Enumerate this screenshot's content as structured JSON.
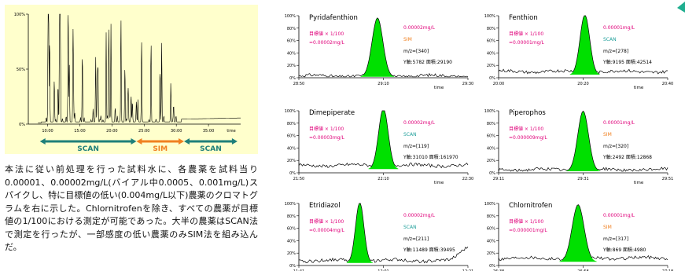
{
  "overview": {
    "y_ticks": [
      "100%",
      "50%",
      "0%"
    ],
    "x_ticks": [
      "10:00",
      "15:00",
      "20:00",
      "25:00",
      "30:00",
      "35:00"
    ],
    "time_label": "time",
    "modes": [
      {
        "label": "SCAN",
        "color": "#1f7f7a",
        "from": 8.8,
        "to": 23.8
      },
      {
        "label": "SIM",
        "color": "#f08020",
        "from": 23.8,
        "to": 31.2
      },
      {
        "label": "SCAN",
        "color": "#1f7f7a",
        "from": 31.2,
        "to": 39.5
      }
    ],
    "xlim": [
      7,
      40
    ]
  },
  "description": "本法に従い前処理を行った試料水に、各農薬を試料当り0.00001、0.00002mg/L(バイアル中0.0005、0.001mg/L)スパイクし、特に目標値の低い(0.004mg/L以下)農薬のクロマトグラムを右に示した。Chlornitrofenを除き、すべての農薬が目標値の1/100における測定が可能であった。大半の農薬はSCAN法で測定を行ったが、一部感度の低い農薬のみSIM法を組み込んだ。",
  "colors": {
    "peak_fill": "#00e000",
    "concentration": "#e0007a",
    "scan": "#1f9f9a",
    "sim": "#f08020",
    "panel_bg": "#ffffcc"
  },
  "chart_data": [
    {
      "type": "line",
      "title": "Pyridafenthion",
      "concentration": "0.00002mg/L",
      "target_label": "目標値 × 1/100",
      "target_value": "=0.00002mg/L",
      "mode": "SIM",
      "mz": "m/z=[340]",
      "stats": "Y軸:5782 面積:29190",
      "y_ticks": [
        "100%",
        "80%",
        "60%",
        "40%",
        "20%",
        "0%"
      ],
      "x_ticks": [
        "28:50",
        "29:10",
        "29:30"
      ],
      "xlabel": "time",
      "peak": {
        "position": 0.465,
        "width": 0.045,
        "height": 0.95
      },
      "baseline": 0.03
    },
    {
      "type": "line",
      "title": "Fenthion",
      "concentration": "0.00001mg/L",
      "target_label": "目標値 × 1/100",
      "target_value": "=0.00001mg/L",
      "mode": "SCAN",
      "mz": "m/z=[278]",
      "stats": "Y軸:9195 面積:42514",
      "y_ticks": [
        "100%",
        "80%",
        "60%",
        "40%",
        "20%",
        "0%"
      ],
      "x_ticks": [
        "20:00",
        "20:20",
        "20:40"
      ],
      "xlabel": "time",
      "peak": {
        "position": 0.51,
        "width": 0.04,
        "height": 0.97
      },
      "baseline": 0.1
    },
    {
      "type": "line",
      "title": "Dimepiperate",
      "concentration": "0.00002mg/L",
      "target_label": "目標値 × 1/100",
      "target_value": "=0.00003mg/L",
      "mode": "SCAN",
      "mz": "m/z=[119]",
      "stats": "Y軸:31010 面積:161970",
      "y_ticks": [
        "100%",
        "80%",
        "60%",
        "40%",
        "20%",
        "0%"
      ],
      "x_ticks": [
        "21:50",
        "22:10",
        "22:30"
      ],
      "xlabel": "time",
      "peak": {
        "position": 0.5,
        "width": 0.04,
        "height": 0.98
      },
      "baseline": 0.12
    },
    {
      "type": "line",
      "title": "Piperophos",
      "concentration": "0.00001mg/L",
      "target_label": "目標値 × 1/100",
      "target_value": "=0.000009mg/L",
      "mode": "SIM",
      "mz": "m/z=[320]",
      "stats": "Y軸:2492 面積:12868",
      "y_ticks": [
        "100%",
        "80%",
        "60%",
        "40%",
        "20%",
        "0%"
      ],
      "x_ticks": [
        "29:11",
        "29:31",
        "29:51"
      ],
      "xlabel": "time",
      "peak": {
        "position": 0.5,
        "width": 0.045,
        "height": 0.97
      },
      "baseline": 0.05
    },
    {
      "type": "line",
      "title": "Etridiazol",
      "concentration": "0.00002mg/L",
      "target_label": "目標値 × 1/100",
      "target_value": "=0.00004mg/L",
      "mode": "SCAN",
      "mz": "m/z=[211]",
      "stats": "Y軸:11489 面積:39495",
      "y_ticks": [
        "100%",
        "80%",
        "60%",
        "40%",
        "20%",
        "0%"
      ],
      "x_ticks": [
        "11:41",
        "12:01",
        "12:21"
      ],
      "xlabel": "time",
      "peak": {
        "position": 0.36,
        "width": 0.035,
        "height": 0.98
      },
      "baseline": 0.08
    },
    {
      "type": "line",
      "title": "Chlornitrofen",
      "concentration": "0.00001mg/L",
      "target_label": "目標値 × 1/100",
      "target_value": "=0.000001mg/L",
      "mode": "SIM",
      "mz": "m/z=[317]",
      "stats": "Y軸:869 面積:4980",
      "y_ticks": [
        "100%",
        "80%",
        "60%",
        "40%",
        "20%",
        "0%"
      ],
      "x_ticks": [
        "26:38",
        "26:58",
        "27:18"
      ],
      "xlabel": "time",
      "peak": {
        "position": 0.47,
        "width": 0.05,
        "height": 0.92
      },
      "baseline": 0.12
    }
  ]
}
